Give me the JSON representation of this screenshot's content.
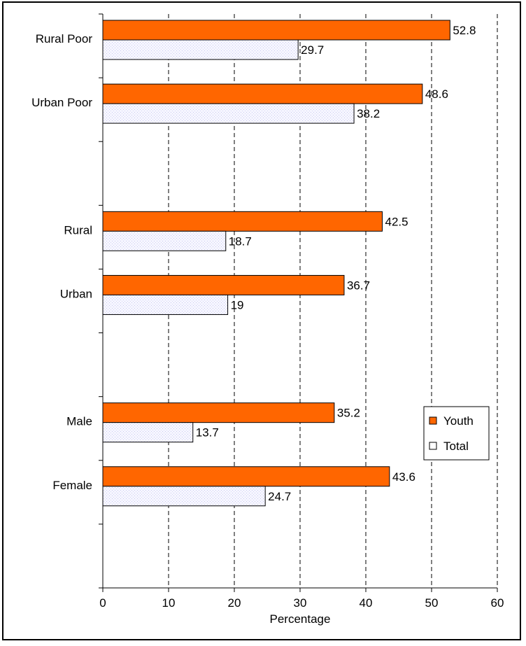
{
  "chart_data": {
    "type": "bar",
    "orientation": "horizontal",
    "title": "",
    "xlabel": "Percentage",
    "ylabel": "",
    "xlim": [
      0,
      60
    ],
    "x_ticks": [
      "0",
      "10",
      "20",
      "30",
      "40",
      "50",
      "60"
    ],
    "grid": "vertical dashed",
    "legend_position": "right",
    "groups": [
      {
        "label": "Rural Poor",
        "youth": 52.8,
        "total": 29.7,
        "youth_label": "52.8",
        "total_label": "29.7"
      },
      {
        "label": "Urban Poor",
        "youth": 48.6,
        "total": 38.2,
        "youth_label": "48.6",
        "total_label": "38.2"
      },
      {
        "label": "Rural",
        "youth": 42.5,
        "total": 18.7,
        "youth_label": "42.5",
        "total_label": "18.7"
      },
      {
        "label": "Urban",
        "youth": 36.7,
        "total": 19,
        "youth_label": "36.7",
        "total_label": "19"
      },
      {
        "label": "Male",
        "youth": 35.2,
        "total": 13.7,
        "youth_label": "35.2",
        "total_label": "13.7"
      },
      {
        "label": "Female",
        "youth": 43.6,
        "total": 24.7,
        "youth_label": "43.6",
        "total_label": "24.7"
      }
    ],
    "series": [
      {
        "name": "Youth",
        "color": "#ff6600",
        "values": [
          52.8,
          48.6,
          42.5,
          36.7,
          35.2,
          43.6
        ]
      },
      {
        "name": "Total",
        "color": "#f4f4ff",
        "values": [
          29.7,
          38.2,
          18.7,
          19,
          13.7,
          24.7
        ]
      }
    ]
  }
}
